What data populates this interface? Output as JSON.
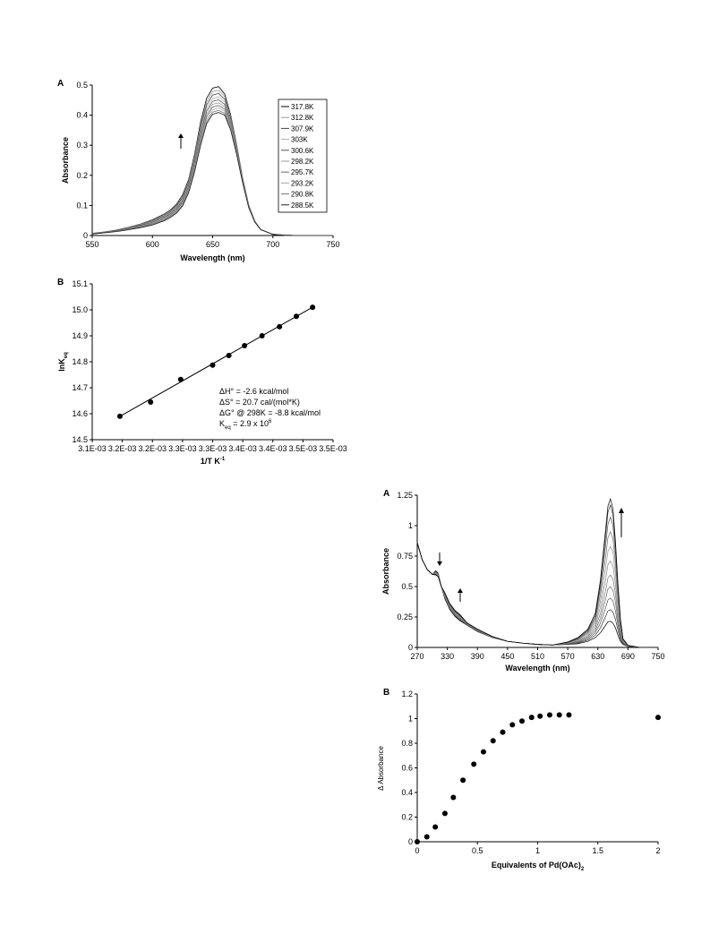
{
  "chart_data": [
    {
      "panel_label": "A",
      "type": "line",
      "xlabel": "Wavelength (nm)",
      "ylabel": "Absorbance",
      "xlim": [
        550,
        750
      ],
      "ylim": [
        0,
        0.5
      ],
      "xticks": [
        550,
        600,
        650,
        700,
        750
      ],
      "yticks": [
        0,
        0.1,
        0.2,
        0.3,
        0.4,
        0.5
      ],
      "xtick_labels": [
        "550",
        "600",
        "650",
        "700",
        "750"
      ],
      "ytick_labels": [
        "0",
        "0.1",
        "0.2",
        "0.3",
        "0.4",
        "0.5"
      ],
      "legend_position": "right",
      "x": [
        550,
        560,
        570,
        580,
        590,
        600,
        610,
        615,
        620,
        625,
        630,
        635,
        640,
        645,
        650,
        655,
        660,
        665,
        670,
        675,
        680,
        685,
        690,
        700,
        710,
        720,
        735,
        750
      ],
      "series": [
        {
          "name": "317.8K",
          "values": [
            0.007,
            0.012,
            0.018,
            0.027,
            0.038,
            0.052,
            0.072,
            0.085,
            0.104,
            0.135,
            0.185,
            0.27,
            0.378,
            0.456,
            0.49,
            0.495,
            0.47,
            0.4,
            0.3,
            0.19,
            0.1,
            0.048,
            0.02,
            0.004,
            0.001,
            0,
            0,
            0
          ]
        },
        {
          "name": "312.8K",
          "values": [
            0.007,
            0.012,
            0.017,
            0.026,
            0.037,
            0.05,
            0.069,
            0.082,
            0.1,
            0.13,
            0.18,
            0.263,
            0.368,
            0.445,
            0.478,
            0.483,
            0.462,
            0.394,
            0.296,
            0.188,
            0.099,
            0.047,
            0.02,
            0.004,
            0.001,
            0,
            0,
            0
          ]
        },
        {
          "name": "307.9K",
          "values": [
            0.007,
            0.011,
            0.017,
            0.025,
            0.035,
            0.048,
            0.066,
            0.079,
            0.097,
            0.126,
            0.175,
            0.256,
            0.358,
            0.434,
            0.467,
            0.472,
            0.453,
            0.388,
            0.292,
            0.186,
            0.098,
            0.047,
            0.02,
            0.004,
            0.001,
            0,
            0,
            0
          ]
        },
        {
          "name": "303K",
          "values": [
            0.006,
            0.011,
            0.016,
            0.024,
            0.034,
            0.046,
            0.063,
            0.076,
            0.093,
            0.121,
            0.169,
            0.249,
            0.349,
            0.424,
            0.456,
            0.461,
            0.444,
            0.382,
            0.288,
            0.184,
            0.097,
            0.046,
            0.02,
            0.004,
            0.001,
            0,
            0,
            0
          ]
        },
        {
          "name": "300.6K",
          "values": [
            0.006,
            0.011,
            0.016,
            0.023,
            0.033,
            0.044,
            0.061,
            0.073,
            0.09,
            0.117,
            0.164,
            0.242,
            0.34,
            0.414,
            0.446,
            0.451,
            0.436,
            0.376,
            0.284,
            0.182,
            0.096,
            0.046,
            0.02,
            0.004,
            0.001,
            0,
            0,
            0
          ]
        },
        {
          "name": "298.2K",
          "values": [
            0.006,
            0.01,
            0.015,
            0.022,
            0.031,
            0.042,
            0.058,
            0.07,
            0.086,
            0.113,
            0.159,
            0.235,
            0.331,
            0.404,
            0.436,
            0.441,
            0.428,
            0.37,
            0.28,
            0.18,
            0.095,
            0.046,
            0.02,
            0.004,
            0.001,
            0,
            0,
            0
          ]
        },
        {
          "name": "295.7K",
          "values": [
            0.006,
            0.01,
            0.015,
            0.021,
            0.03,
            0.04,
            0.055,
            0.067,
            0.083,
            0.109,
            0.154,
            0.228,
            0.322,
            0.395,
            0.427,
            0.432,
            0.42,
            0.364,
            0.277,
            0.178,
            0.094,
            0.045,
            0.019,
            0.004,
            0.001,
            0,
            0,
            0
          ]
        },
        {
          "name": "293.2K",
          "values": [
            0.005,
            0.009,
            0.014,
            0.02,
            0.028,
            0.038,
            0.053,
            0.064,
            0.08,
            0.105,
            0.149,
            0.222,
            0.314,
            0.386,
            0.418,
            0.424,
            0.413,
            0.359,
            0.274,
            0.176,
            0.093,
            0.045,
            0.019,
            0.004,
            0.001,
            0,
            0,
            0
          ]
        },
        {
          "name": "290.8K",
          "values": [
            0.005,
            0.009,
            0.014,
            0.02,
            0.027,
            0.037,
            0.051,
            0.062,
            0.077,
            0.101,
            0.145,
            0.216,
            0.307,
            0.378,
            0.41,
            0.416,
            0.406,
            0.354,
            0.271,
            0.175,
            0.093,
            0.045,
            0.019,
            0.004,
            0.001,
            0,
            0,
            0
          ]
        },
        {
          "name": "288.5K",
          "values": [
            0.005,
            0.009,
            0.013,
            0.019,
            0.026,
            0.035,
            0.049,
            0.06,
            0.074,
            0.098,
            0.141,
            0.211,
            0.3,
            0.371,
            0.403,
            0.409,
            0.4,
            0.35,
            0.268,
            0.174,
            0.092,
            0.044,
            0.019,
            0.004,
            0.001,
            0,
            0,
            0
          ]
        }
      ]
    },
    {
      "panel_label": "B",
      "type": "scatter",
      "xlabel": "1/T K",
      "xlabel_sup": "-1",
      "ylabel": "lnK",
      "ylabel_sub": "eq",
      "xlim": [
        0.0031,
        0.0035
      ],
      "ylim": [
        14.5,
        15.1
      ],
      "xticks": [
        0.0031,
        0.00315,
        0.0032,
        0.00325,
        0.0033,
        0.00335,
        0.0034,
        0.00345,
        0.0035
      ],
      "yticks": [
        14.5,
        14.6,
        14.7,
        14.8,
        14.9,
        15.0,
        15.1
      ],
      "xtick_labels": [
        "3.1E-03",
        "3.2E-03",
        "3.2E-03",
        "3.3E-03",
        "3.3E-03",
        "3.4E-03",
        "3.4E-03",
        "3.5E-03",
        "3.5E-03"
      ],
      "ytick_labels": [
        "14.5",
        "14.6",
        "14.7",
        "14.8",
        "14.9",
        "15.0",
        "15.1"
      ],
      "x": [
        0.003146,
        0.003197,
        0.003247,
        0.0033,
        0.003327,
        0.003353,
        0.003382,
        0.003411,
        0.003439,
        0.003466
      ],
      "y": [
        14.59,
        14.645,
        14.732,
        14.787,
        14.824,
        14.862,
        14.9,
        14.935,
        14.975,
        15.01
      ],
      "fit_line": {
        "x": [
          0.003146,
          0.003466
        ],
        "y": [
          14.59,
          15.01
        ]
      },
      "annotations": [
        {
          "pre": "ΔH° = -2.6 kcal/mol"
        },
        {
          "pre": "ΔS° = 20.7 cal/(mol*K)"
        },
        {
          "pre": "ΔG° @ 298K = -8.8 kcal/mol"
        },
        {
          "pre": "K",
          "sub": "eq",
          "mid": " = 2.9 x 10",
          "sup": "6"
        }
      ]
    },
    {
      "panel_label": "A",
      "type": "line",
      "xlabel": "Wavelength (nm)",
      "ylabel": "Absorbance",
      "xlim": [
        270,
        750
      ],
      "ylim": [
        0,
        1.25
      ],
      "xticks": [
        270,
        330,
        390,
        450,
        510,
        570,
        630,
        690,
        750
      ],
      "yticks": [
        0,
        0.25,
        0.5,
        0.75,
        1,
        1.25
      ],
      "xtick_labels": [
        "270",
        "330",
        "390",
        "450",
        "510",
        "570",
        "630",
        "690",
        "750"
      ],
      "ytick_labels": [
        "0",
        "0.25",
        "0.5",
        "0.75",
        "1",
        "1.25"
      ],
      "x": [
        270,
        280,
        290,
        300,
        307,
        312,
        318,
        325,
        335,
        345,
        355,
        370,
        390,
        420,
        450,
        480,
        510,
        540,
        570,
        590,
        610,
        625,
        635,
        645,
        650,
        655,
        660,
        665,
        670,
        675,
        680,
        690,
        710,
        750
      ],
      "series": [
        {
          "values": [
            0.86,
            0.72,
            0.64,
            0.6,
            0.63,
            0.61,
            0.5,
            0.4,
            0.31,
            0.255,
            0.22,
            0.18,
            0.13,
            0.08,
            0.05,
            0.035,
            0.025,
            0.02,
            0.025,
            0.03,
            0.05,
            0.08,
            0.12,
            0.18,
            0.21,
            0.215,
            0.2,
            0.16,
            0.1,
            0.05,
            0.025,
            0.008,
            0.002,
            0
          ]
        },
        {
          "values": [
            0.86,
            0.72,
            0.64,
            0.6,
            0.626,
            0.606,
            0.5,
            0.405,
            0.315,
            0.26,
            0.225,
            0.182,
            0.132,
            0.081,
            0.05,
            0.035,
            0.025,
            0.02,
            0.027,
            0.035,
            0.06,
            0.1,
            0.16,
            0.25,
            0.3,
            0.31,
            0.29,
            0.23,
            0.14,
            0.065,
            0.03,
            0.009,
            0.002,
            0
          ]
        },
        {
          "values": [
            0.86,
            0.72,
            0.64,
            0.6,
            0.622,
            0.603,
            0.5,
            0.41,
            0.32,
            0.265,
            0.23,
            0.184,
            0.134,
            0.082,
            0.05,
            0.035,
            0.025,
            0.02,
            0.029,
            0.04,
            0.07,
            0.12,
            0.2,
            0.32,
            0.39,
            0.405,
            0.38,
            0.3,
            0.18,
            0.085,
            0.035,
            0.01,
            0.002,
            0
          ]
        },
        {
          "values": [
            0.86,
            0.72,
            0.64,
            0.6,
            0.618,
            0.6,
            0.5,
            0.415,
            0.325,
            0.27,
            0.235,
            0.186,
            0.136,
            0.083,
            0.05,
            0.035,
            0.025,
            0.02,
            0.031,
            0.045,
            0.08,
            0.14,
            0.24,
            0.39,
            0.48,
            0.5,
            0.47,
            0.37,
            0.22,
            0.1,
            0.04,
            0.011,
            0.002,
            0
          ]
        },
        {
          "values": [
            0.86,
            0.72,
            0.64,
            0.6,
            0.614,
            0.597,
            0.5,
            0.42,
            0.33,
            0.275,
            0.24,
            0.188,
            0.138,
            0.084,
            0.05,
            0.035,
            0.025,
            0.02,
            0.033,
            0.05,
            0.09,
            0.16,
            0.28,
            0.46,
            0.57,
            0.595,
            0.56,
            0.44,
            0.26,
            0.12,
            0.045,
            0.012,
            0.002,
            0
          ]
        },
        {
          "values": [
            0.86,
            0.72,
            0.64,
            0.6,
            0.61,
            0.594,
            0.5,
            0.425,
            0.335,
            0.28,
            0.245,
            0.19,
            0.14,
            0.085,
            0.05,
            0.035,
            0.025,
            0.02,
            0.035,
            0.055,
            0.1,
            0.18,
            0.33,
            0.55,
            0.68,
            0.71,
            0.67,
            0.52,
            0.31,
            0.14,
            0.05,
            0.013,
            0.002,
            0
          ]
        },
        {
          "values": [
            0.86,
            0.72,
            0.64,
            0.6,
            0.607,
            0.591,
            0.5,
            0.43,
            0.34,
            0.285,
            0.25,
            0.192,
            0.142,
            0.086,
            0.05,
            0.035,
            0.025,
            0.02,
            0.037,
            0.06,
            0.11,
            0.2,
            0.38,
            0.64,
            0.79,
            0.83,
            0.78,
            0.6,
            0.36,
            0.16,
            0.055,
            0.014,
            0.002,
            0
          ]
        },
        {
          "values": [
            0.86,
            0.72,
            0.64,
            0.6,
            0.604,
            0.588,
            0.5,
            0.435,
            0.345,
            0.29,
            0.255,
            0.194,
            0.144,
            0.087,
            0.05,
            0.035,
            0.025,
            0.02,
            0.039,
            0.065,
            0.12,
            0.22,
            0.43,
            0.73,
            0.9,
            0.95,
            0.89,
            0.68,
            0.41,
            0.18,
            0.06,
            0.015,
            0.002,
            0
          ]
        },
        {
          "values": [
            0.86,
            0.72,
            0.64,
            0.6,
            0.601,
            0.585,
            0.5,
            0.44,
            0.35,
            0.295,
            0.26,
            0.196,
            0.146,
            0.088,
            0.05,
            0.035,
            0.025,
            0.02,
            0.041,
            0.07,
            0.13,
            0.24,
            0.48,
            0.82,
            1.01,
            1.07,
            1.0,
            0.76,
            0.46,
            0.2,
            0.065,
            0.016,
            0.002,
            0
          ]
        },
        {
          "values": [
            0.86,
            0.72,
            0.64,
            0.6,
            0.598,
            0.582,
            0.5,
            0.445,
            0.355,
            0.3,
            0.265,
            0.198,
            0.148,
            0.089,
            0.05,
            0.035,
            0.025,
            0.02,
            0.043,
            0.075,
            0.14,
            0.26,
            0.52,
            0.9,
            1.11,
            1.17,
            1.09,
            0.83,
            0.5,
            0.22,
            0.07,
            0.017,
            0.002,
            0
          ]
        },
        {
          "values": [
            0.86,
            0.72,
            0.64,
            0.6,
            0.595,
            0.58,
            0.5,
            0.45,
            0.36,
            0.305,
            0.27,
            0.2,
            0.15,
            0.09,
            0.05,
            0.035,
            0.025,
            0.02,
            0.045,
            0.08,
            0.15,
            0.28,
            0.55,
            0.95,
            1.16,
            1.22,
            1.14,
            0.87,
            0.52,
            0.23,
            0.072,
            0.018,
            0.002,
            0
          ]
        }
      ]
    },
    {
      "panel_label": "B",
      "type": "scatter",
      "xlabel": "Equivalents of Pd(OAc)",
      "xlabel_sub": "2",
      "ylabel": "Δ Absorbance",
      "xlim": [
        0,
        2
      ],
      "ylim": [
        0,
        1.2
      ],
      "xticks": [
        0,
        0.5,
        1,
        1.5,
        2
      ],
      "yticks": [
        0,
        0.2,
        0.4,
        0.6,
        0.8,
        1,
        1.2
      ],
      "xtick_labels": [
        "0",
        "0.5",
        "1",
        "1.5",
        "2"
      ],
      "ytick_labels": [
        "0",
        "0.2",
        "0.4",
        "0.6",
        "0.8",
        "1",
        "1.2"
      ],
      "x": [
        0,
        0.08,
        0.15,
        0.23,
        0.3,
        0.38,
        0.47,
        0.55,
        0.63,
        0.71,
        0.79,
        0.87,
        0.95,
        1.02,
        1.1,
        1.18,
        1.26,
        2.0
      ],
      "y": [
        0,
        0.04,
        0.12,
        0.23,
        0.36,
        0.5,
        0.63,
        0.73,
        0.82,
        0.89,
        0.95,
        0.98,
        1.01,
        1.02,
        1.03,
        1.03,
        1.03,
        1.01
      ]
    }
  ]
}
